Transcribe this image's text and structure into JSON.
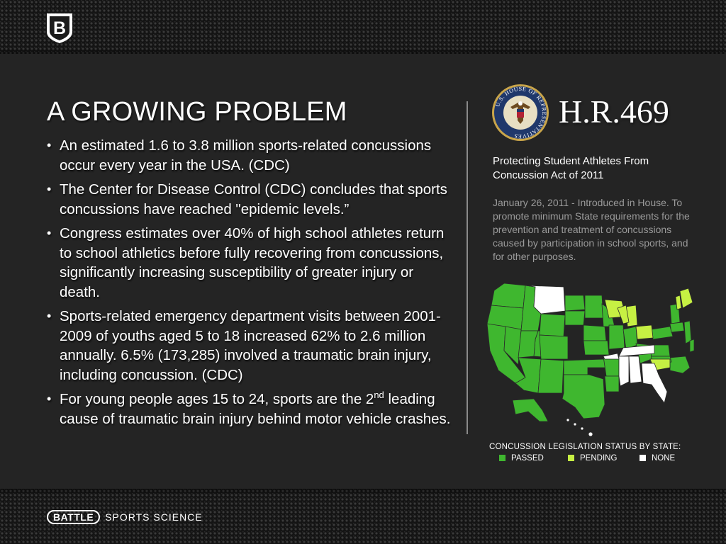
{
  "header": {
    "logo_icon": "battle-shield-logo-icon",
    "logo_letter": "B"
  },
  "main": {
    "title": "A GROWING PROBLEM",
    "bullets": [
      "An estimated 1.6 to 3.8 million sports-related concussions occur every year in the USA. (CDC)",
      "The Center for Disease Control (CDC) concludes that sports concussions have reached \"epidemic levels.”",
      "Congress estimates over 40% of high school athletes return to school athletics before fully recovering from concussions, significantly increasing susceptibility of greater injury or death.",
      "Sports-related emergency department visits between 2001-2009 of youths aged 5 to 18 increased 62% to 2.6 million annually. 6.5% (173,285) involved a traumatic brain injury, including concussion. (CDC)"
    ],
    "last_bullet": {
      "before": "For young people ages 15 to 24, sports are the 2",
      "sup": "nd",
      "after": " leading cause of traumatic brain injury behind motor vehicle crashes."
    }
  },
  "bill": {
    "seal_icon": "us-house-seal-icon",
    "seal_text": "U.S. HOUSE OF REPRESENTATIVES",
    "number": "H.R.469",
    "name": "Protecting Student Athletes From Concussion Act of 2011",
    "description": "January 26, 2011 - Introduced in House. To promote minimum State requirements for the prevention and treatment of concussions caused by participation in school sports, and for other purposes."
  },
  "map": {
    "icon": "us-states-map-icon",
    "legend_title": "CONCUSSION LEGISLATION STATUS BY STATE:",
    "legend": [
      {
        "label": "PASSED",
        "color": "#3fb72f"
      },
      {
        "label": "PENDING",
        "color": "#c6f043"
      },
      {
        "label": "NONE",
        "color": "#ffffff"
      }
    ]
  },
  "footer": {
    "brand_badge": "BATTLE",
    "brand_text": "SPORTS SCIENCE"
  },
  "colors": {
    "background": "#242424",
    "passed": "#3fb72f",
    "pending": "#c6f043",
    "none": "#ffffff",
    "muted_text": "#9a9a9a"
  }
}
